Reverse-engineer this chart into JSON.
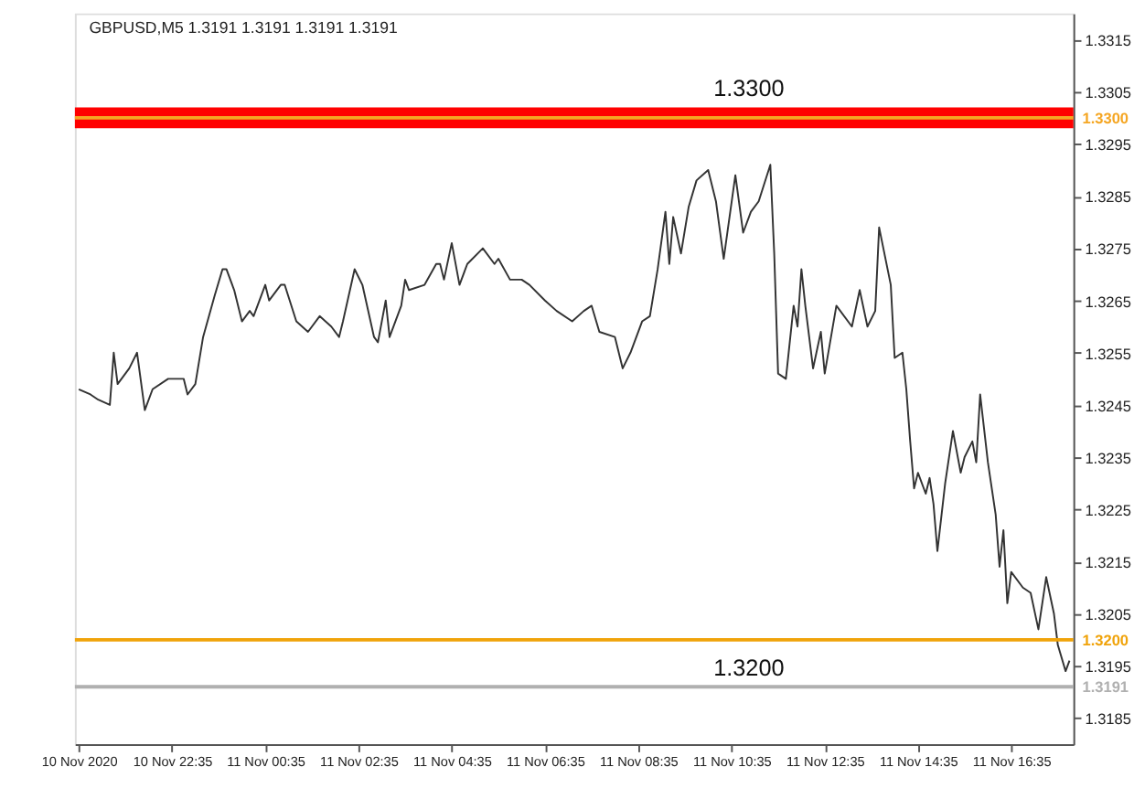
{
  "chart_data": {
    "type": "line",
    "title": "GBPUSD,M5  1.3191 1.3191 1.3191 1.3191",
    "series": [
      {
        "color": "#333333",
        "x": [
          "2020-11-10T20:35",
          "2020-11-10T20:50",
          "2020-11-10T21:00",
          "2020-11-10T21:15",
          "2020-11-10T21:20",
          "2020-11-10T21:25",
          "2020-11-10T21:40",
          "2020-11-10T21:50",
          "2020-11-10T22:00",
          "2020-11-10T22:10",
          "2020-11-10T22:30",
          "2020-11-10T22:50",
          "2020-11-10T22:55",
          "2020-11-10T23:05",
          "2020-11-10T23:15",
          "2020-11-10T23:30",
          "2020-11-10T23:40",
          "2020-11-10T23:45",
          "2020-11-10T23:55",
          "2020-11-11T00:05",
          "2020-11-11T00:15",
          "2020-11-11T00:20",
          "2020-11-11T00:35",
          "2020-11-11T00:40",
          "2020-11-11T00:55",
          "2020-11-11T01:00",
          "2020-11-11T01:15",
          "2020-11-11T01:30",
          "2020-11-11T01:45",
          "2020-11-11T02:00",
          "2020-11-11T02:10",
          "2020-11-11T02:15",
          "2020-11-11T02:30",
          "2020-11-11T02:40",
          "2020-11-11T02:55",
          "2020-11-11T03:00",
          "2020-11-11T03:10",
          "2020-11-11T03:15",
          "2020-11-11T03:30",
          "2020-11-11T03:35",
          "2020-11-11T03:40",
          "2020-11-11T04:00",
          "2020-11-11T04:15",
          "2020-11-11T04:20",
          "2020-11-11T04:25",
          "2020-11-11T04:35",
          "2020-11-11T04:45",
          "2020-11-11T04:55",
          "2020-11-11T05:15",
          "2020-11-11T05:30",
          "2020-11-11T05:35",
          "2020-11-11T05:50",
          "2020-11-11T06:05",
          "2020-11-11T06:15",
          "2020-11-11T06:35",
          "2020-11-11T06:50",
          "2020-11-11T07:10",
          "2020-11-11T07:25",
          "2020-11-11T07:35",
          "2020-11-11T07:45",
          "2020-11-11T08:05",
          "2020-11-11T08:15",
          "2020-11-11T08:25",
          "2020-11-11T08:40",
          "2020-11-11T08:50",
          "2020-11-11T09:00",
          "2020-11-11T09:10",
          "2020-11-11T09:15",
          "2020-11-11T09:20",
          "2020-11-11T09:30",
          "2020-11-11T09:40",
          "2020-11-11T09:50",
          "2020-11-11T10:05",
          "2020-11-11T10:15",
          "2020-11-11T10:25",
          "2020-11-11T10:40",
          "2020-11-11T10:50",
          "2020-11-11T11:00",
          "2020-11-11T11:10",
          "2020-11-11T11:25",
          "2020-11-11T11:30",
          "2020-11-11T11:35",
          "2020-11-11T11:45",
          "2020-11-11T11:55",
          "2020-11-11T12:00",
          "2020-11-11T12:05",
          "2020-11-11T12:10",
          "2020-11-11T12:20",
          "2020-11-11T12:30",
          "2020-11-11T12:35",
          "2020-11-11T12:50",
          "2020-11-11T13:10",
          "2020-11-11T13:20",
          "2020-11-11T13:30",
          "2020-11-11T13:40",
          "2020-11-11T13:45",
          "2020-11-11T14:00",
          "2020-11-11T14:05",
          "2020-11-11T14:15",
          "2020-11-11T14:20",
          "2020-11-11T14:25",
          "2020-11-11T14:30",
          "2020-11-11T14:35",
          "2020-11-11T14:45",
          "2020-11-11T14:50",
          "2020-11-11T14:55",
          "2020-11-11T15:00",
          "2020-11-11T15:10",
          "2020-11-11T15:20",
          "2020-11-11T15:30",
          "2020-11-11T15:35",
          "2020-11-11T15:45",
          "2020-11-11T15:50",
          "2020-11-11T15:55",
          "2020-11-11T16:05",
          "2020-11-11T16:15",
          "2020-11-11T16:20",
          "2020-11-11T16:25",
          "2020-11-11T16:30",
          "2020-11-11T16:35",
          "2020-11-11T16:50",
          "2020-11-11T17:00",
          "2020-11-11T17:10",
          "2020-11-11T17:15",
          "2020-11-11T17:20",
          "2020-11-11T17:30",
          "2020-11-11T17:35",
          "2020-11-11T17:45",
          "2020-11-11T17:50"
        ],
        "values": [
          1.3248,
          1.3247,
          1.3246,
          1.3245,
          1.3255,
          1.3249,
          1.3252,
          1.3255,
          1.3244,
          1.3248,
          1.325,
          1.325,
          1.3247,
          1.3249,
          1.3258,
          1.3266,
          1.3271,
          1.3271,
          1.3267,
          1.3261,
          1.3263,
          1.3262,
          1.3268,
          1.3265,
          1.3268,
          1.3268,
          1.3261,
          1.3259,
          1.3262,
          1.326,
          1.3258,
          1.3261,
          1.3271,
          1.3268,
          1.3258,
          1.3257,
          1.3265,
          1.3258,
          1.3264,
          1.3269,
          1.3267,
          1.3268,
          1.3272,
          1.3272,
          1.3269,
          1.3276,
          1.3268,
          1.3272,
          1.3275,
          1.3272,
          1.3273,
          1.3269,
          1.3269,
          1.3268,
          1.3265,
          1.3263,
          1.3261,
          1.3263,
          1.3264,
          1.3259,
          1.3258,
          1.3252,
          1.3255,
          1.3261,
          1.3262,
          1.3271,
          1.3282,
          1.3272,
          1.3281,
          1.3274,
          1.3283,
          1.3288,
          1.329,
          1.3284,
          1.3273,
          1.3289,
          1.3278,
          1.3282,
          1.3284,
          1.3291,
          1.3274,
          1.3251,
          1.325,
          1.3264,
          1.326,
          1.3271,
          1.3264,
          1.3252,
          1.3259,
          1.3251,
          1.3264,
          1.326,
          1.3267,
          1.326,
          1.3263,
          1.3279,
          1.3268,
          1.3254,
          1.3255,
          1.3248,
          1.3238,
          1.3229,
          1.3232,
          1.3228,
          1.3231,
          1.3226,
          1.3217,
          1.323,
          1.324,
          1.3232,
          1.3235,
          1.3238,
          1.3234,
          1.3247,
          1.3234,
          1.3224,
          1.3214,
          1.3221,
          1.3207,
          1.3213,
          1.321,
          1.3209,
          1.3202,
          1.3207,
          1.3212,
          1.3205,
          1.3199,
          1.3194,
          1.3196
        ]
      }
    ],
    "xlim": [
      "2020-11-10T20:30",
      "2020-11-11T17:55"
    ],
    "ylim": [
      1.318,
      1.332
    ],
    "xticks": [
      {
        "value": "2020-11-10T20:35",
        "label": "10 Nov 2020"
      },
      {
        "value": "2020-11-10T22:35",
        "label": "10 Nov 22:35"
      },
      {
        "value": "2020-11-11T00:35",
        "label": "11 Nov 00:35"
      },
      {
        "value": "2020-11-11T02:35",
        "label": "11 Nov 02:35"
      },
      {
        "value": "2020-11-11T04:35",
        "label": "11 Nov 04:35"
      },
      {
        "value": "2020-11-11T06:35",
        "label": "11 Nov 06:35"
      },
      {
        "value": "2020-11-11T08:35",
        "label": "11 Nov 08:35"
      },
      {
        "value": "2020-11-11T10:35",
        "label": "11 Nov 10:35"
      },
      {
        "value": "2020-11-11T12:35",
        "label": "11 Nov 12:35"
      },
      {
        "value": "2020-11-11T14:35",
        "label": "11 Nov 14:35"
      },
      {
        "value": "2020-11-11T16:35",
        "label": "11 Nov 16:35"
      }
    ],
    "yticks": [
      1.3185,
      1.3195,
      1.3205,
      1.3215,
      1.3225,
      1.3235,
      1.3245,
      1.3255,
      1.3265,
      1.3275,
      1.3285,
      1.3295,
      1.3305,
      1.3315
    ],
    "bands": [
      {
        "axis": "y",
        "from": 1.3298,
        "to": 1.3302,
        "color": "#ff0000"
      }
    ],
    "ref_lines": [
      {
        "axis": "y",
        "value": 1.33,
        "label": "1.3300",
        "color": "#f5a623"
      },
      {
        "axis": "y",
        "value": 1.32,
        "label": "1.3200",
        "color": "#f0a30a"
      },
      {
        "axis": "y",
        "value": 1.3191,
        "label": "1.3191",
        "color": "#b0b0b0"
      }
    ],
    "annotations": [
      "1.3300",
      "1.3200"
    ],
    "grid": false,
    "legend": false,
    "marker": "none",
    "line_style": "solid"
  }
}
